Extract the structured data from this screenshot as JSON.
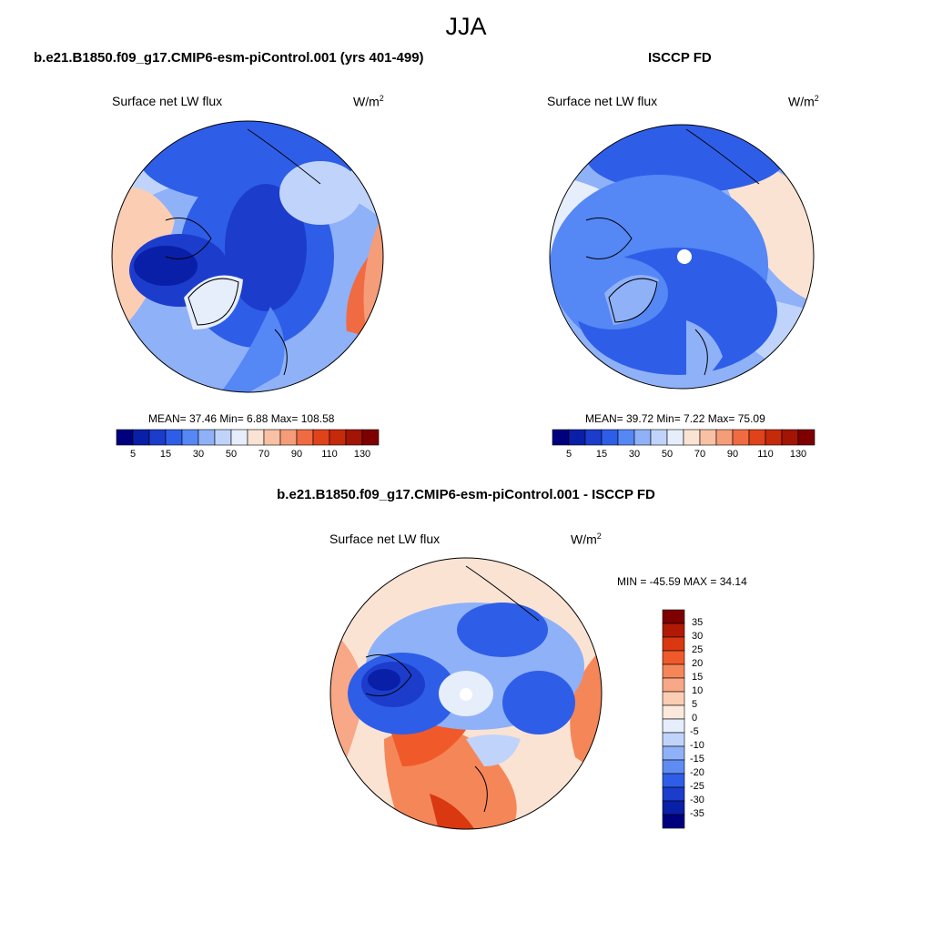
{
  "figure": {
    "season": "JJA",
    "variable_label": "Surface net LW flux",
    "unit_base": "W/m",
    "unit_exp": "2"
  },
  "panels": [
    {
      "id": "model",
      "title": "b.e21.B1850.f09_g17.CMIP6-esm-piControl.001 (yrs 401-499)",
      "stats_text": "MEAN=  37.46  Min=   6.88  Max= 108.58",
      "mean": 37.46,
      "min": 6.88,
      "max": 108.58
    },
    {
      "id": "obs",
      "title": "ISCCP FD",
      "stats_text": "MEAN=  39.72  Min=   7.22  Max=  75.09",
      "mean": 39.72,
      "min": 7.22,
      "max": 75.09
    },
    {
      "id": "diff",
      "title": "b.e21.B1850.f09_g17.CMIP6-esm-piControl.001 - ISCCP FD",
      "stats_text": "MIN = -45.59 MAX =  34.14",
      "min": -45.59,
      "max": 34.14
    }
  ],
  "colorbars": {
    "absolute": {
      "tick_labels": [
        "5",
        "15",
        "30",
        "50",
        "70",
        "90",
        "110",
        "130"
      ],
      "colors": [
        "#00007f",
        "#0a1fa8",
        "#1c3ccc",
        "#2e5ee8",
        "#5587f5",
        "#8fb1f8",
        "#c0d4fb",
        "#e6eefc",
        "#fbe3d3",
        "#f8c1a4",
        "#f59c79",
        "#f06a42",
        "#e0431a",
        "#c52a0b",
        "#a21404",
        "#7f0000"
      ]
    },
    "difference": {
      "tick_labels": [
        "35",
        "30",
        "25",
        "20",
        "15",
        "10",
        "5",
        "0",
        "-5",
        "-10",
        "-15",
        "-20",
        "-25",
        "-30",
        "-35"
      ],
      "colors": [
        "#7f0000",
        "#b01a04",
        "#d93810",
        "#f05a2a",
        "#f58658",
        "#f8a886",
        "#fbcdb3",
        "#fbe9dc",
        "#e6eefc",
        "#c0d4fb",
        "#8fb1f8",
        "#5e8cf3",
        "#2e5ee8",
        "#1c3ccc",
        "#0a1fa8",
        "#00007f"
      ]
    }
  }
}
